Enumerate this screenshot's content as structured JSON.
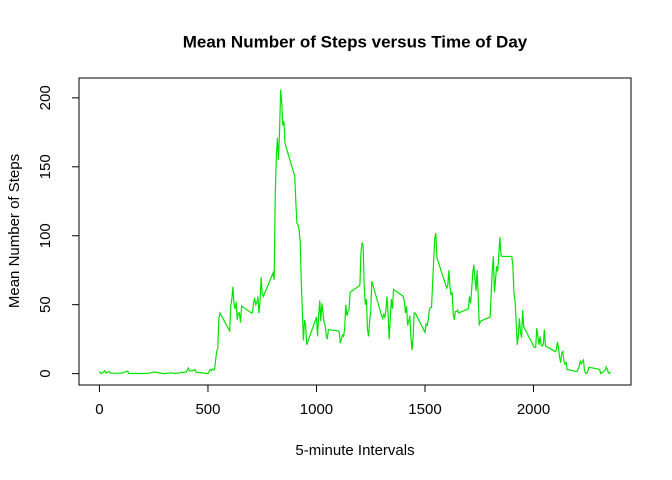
{
  "chart_data": {
    "type": "line",
    "title": "Mean Number of Steps versus Time of Day",
    "x_label": "5-minute Intervals",
    "y_label": "Mean Number of Steps",
    "xlim": [
      -94.2,
      2449.2
    ],
    "ylim": [
      -8.25,
      214.4
    ],
    "xticks": [
      0,
      500,
      1000,
      1500,
      2000
    ],
    "yticks": [
      0,
      50,
      100,
      150,
      200
    ],
    "x": [
      0,
      5,
      10,
      25,
      30,
      45,
      50,
      100,
      130,
      135,
      200,
      230,
      250,
      300,
      330,
      345,
      400,
      410,
      415,
      430,
      440,
      445,
      450,
      500,
      505,
      510,
      515,
      520,
      530,
      540,
      545,
      550,
      555,
      600,
      605,
      610,
      615,
      620,
      625,
      630,
      635,
      640,
      645,
      650,
      655,
      700,
      705,
      710,
      715,
      720,
      725,
      730,
      735,
      740,
      745,
      750,
      755,
      800,
      805,
      810,
      815,
      820,
      825,
      830,
      835,
      840,
      845,
      850,
      855,
      900,
      905,
      910,
      915,
      920,
      925,
      930,
      935,
      940,
      945,
      950,
      955,
      1000,
      1005,
      1010,
      1015,
      1020,
      1025,
      1030,
      1035,
      1040,
      1045,
      1050,
      1055,
      1100,
      1105,
      1110,
      1115,
      1120,
      1125,
      1130,
      1135,
      1140,
      1145,
      1150,
      1155,
      1200,
      1205,
      1210,
      1215,
      1220,
      1225,
      1230,
      1235,
      1240,
      1245,
      1250,
      1255,
      1300,
      1305,
      1310,
      1315,
      1320,
      1325,
      1330,
      1335,
      1340,
      1345,
      1350,
      1355,
      1400,
      1405,
      1410,
      1415,
      1420,
      1425,
      1430,
      1435,
      1440,
      1445,
      1450,
      1455,
      1500,
      1505,
      1510,
      1515,
      1520,
      1525,
      1530,
      1535,
      1540,
      1545,
      1550,
      1555,
      1600,
      1605,
      1610,
      1615,
      1620,
      1625,
      1630,
      1635,
      1640,
      1645,
      1650,
      1655,
      1700,
      1705,
      1710,
      1715,
      1720,
      1725,
      1730,
      1735,
      1740,
      1745,
      1750,
      1755,
      1800,
      1805,
      1810,
      1815,
      1820,
      1825,
      1830,
      1835,
      1840,
      1845,
      1850,
      1855,
      1900,
      1905,
      1910,
      1915,
      1920,
      1925,
      1930,
      1935,
      1940,
      1945,
      1950,
      1955,
      2000,
      2005,
      2010,
      2015,
      2020,
      2025,
      2030,
      2035,
      2040,
      2045,
      2050,
      2055,
      2100,
      2105,
      2110,
      2115,
      2120,
      2125,
      2130,
      2135,
      2140,
      2145,
      2150,
      2155,
      2200,
      2205,
      2210,
      2215,
      2220,
      2225,
      2230,
      2235,
      2240,
      2245,
      2250,
      2255,
      2300,
      2305,
      2310,
      2315,
      2320,
      2325,
      2330,
      2335,
      2340,
      2345,
      2350,
      2355
    ],
    "series": [
      {
        "name": "steps",
        "color": "#00e400",
        "values": [
          1.7,
          0.3,
          0.1,
          2.1,
          0.5,
          1.5,
          0.3,
          0.3,
          1.8,
          0.2,
          0.1,
          0.3,
          1.2,
          0,
          0.6,
          0.1,
          1.2,
          4,
          2,
          2,
          3,
          1,
          1,
          0,
          1.5,
          3,
          2.2,
          3.3,
          2.7,
          16,
          18,
          39,
          44,
          31,
          49,
          54,
          63,
          50,
          47,
          52,
          39,
          44,
          44,
          37,
          49,
          44,
          44,
          51,
          55,
          50,
          51,
          56,
          44,
          52,
          70,
          58,
          56,
          73,
          68,
          129,
          158,
          171,
          155,
          177,
          206,
          196,
          180,
          183,
          167,
          143,
          124,
          109,
          108,
          104,
          96,
          66,
          45,
          24,
          39,
          35,
          21,
          41,
          27,
          42,
          53,
          38,
          51,
          44,
          37,
          35,
          28,
          25,
          32,
          31,
          30,
          22,
          25,
          28,
          27,
          33,
          50,
          42,
          45,
          46,
          59,
          64,
          88,
          95,
          93,
          63,
          50,
          54,
          32,
          27,
          38,
          45,
          67,
          42,
          40,
          43,
          41,
          46,
          56,
          43,
          25,
          40,
          54,
          47,
          61,
          56,
          52,
          44,
          49,
          35,
          38,
          42,
          27,
          17,
          26,
          44,
          44,
          30,
          36,
          35,
          39,
          46,
          48,
          48,
          65,
          82,
          98,
          102,
          84,
          62,
          64,
          75,
          63,
          57,
          59,
          44,
          39,
          45,
          45,
          46,
          44,
          47,
          56,
          51,
          61,
          73,
          79,
          69,
          60,
          75,
          57,
          35,
          38,
          41,
          58,
          75,
          85,
          59,
          68,
          78,
          74,
          86,
          99,
          86,
          85,
          85,
          78,
          58,
          53,
          37,
          21,
          27,
          40,
          30,
          26,
          46,
          34,
          20,
          19,
          19,
          33,
          27,
          21,
          27,
          21,
          20,
          21,
          32,
          20,
          16,
          17,
          23,
          19,
          12,
          8,
          15,
          16,
          9,
          7,
          8,
          3,
          1.5,
          3,
          5,
          9,
          7,
          8.7,
          9.8,
          2.2,
          0.3,
          0.1,
          1.6,
          4.6,
          3.3,
          2.8,
          0,
          0.8,
          1,
          1.6,
          2.6,
          4.7,
          3.3,
          0.6,
          0.2,
          1.1
        ]
      }
    ]
  }
}
